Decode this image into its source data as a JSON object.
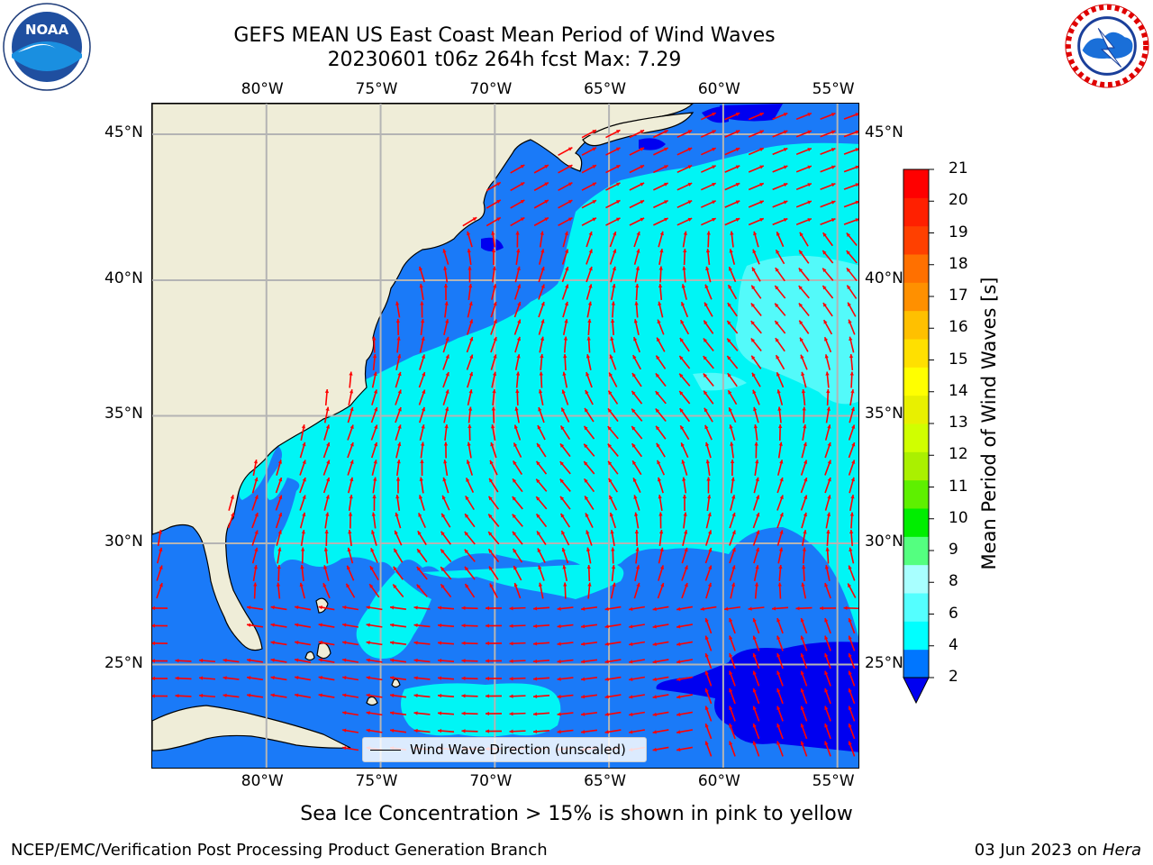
{
  "title": {
    "line1": "GEFS MEAN US East Coast Mean Period of Wind Waves",
    "line2": "20230601 t06z 264h fcst   Max: 7.29"
  },
  "logos": {
    "left": {
      "text": "NOAA",
      "icon": "noaa-logo-icon"
    },
    "right": {
      "icon": "nws-logo-icon"
    }
  },
  "map": {
    "lon_ticks": [
      "80°W",
      "75°W",
      "70°W",
      "65°W",
      "60°W",
      "55°W"
    ],
    "lat_ticks": [
      "45°N",
      "40°N",
      "35°N",
      "30°N",
      "25°N"
    ],
    "lon_range": [
      -85,
      -54
    ],
    "lat_range": [
      20.5,
      46
    ],
    "colors": {
      "land": "#efedd8",
      "period_2_4": "#1a7af8",
      "period_4_6": "#00f5f5",
      "period_6_8": "#53fafa",
      "period_lt_2": "#0000f0",
      "arrow": "#ff0000",
      "gridline": "#b4b4b4"
    }
  },
  "legend": {
    "label": "Wind Wave Direction (unscaled)"
  },
  "colorbar": {
    "label": "Mean Period of Wind Waves [s]",
    "ticks": [
      "21",
      "20",
      "19",
      "18",
      "17",
      "16",
      "15",
      "14",
      "13",
      "12",
      "11",
      "10",
      "9",
      "8",
      "6",
      "4",
      "2"
    ],
    "colors": [
      "#0076ff",
      "#00ffff",
      "#54ffff",
      "#a8ffff",
      "#54ff80",
      "#00ee00",
      "#5ef000",
      "#aaf000",
      "#d0ff00",
      "#e8f000",
      "#ffff00",
      "#ffe000",
      "#ffc000",
      "#ff9000",
      "#ff7000",
      "#ff4000",
      "#ff2000",
      "#ff0000"
    ],
    "under_color": "#0000f0"
  },
  "note": "Sea Ice Concentration > 15% is shown in pink to yellow",
  "footer": {
    "left": "NCEP/EMC/Verification Post Processing Product Generation Branch",
    "right_date": "03 Jun 2023 on",
    "right_host": "Hera"
  }
}
